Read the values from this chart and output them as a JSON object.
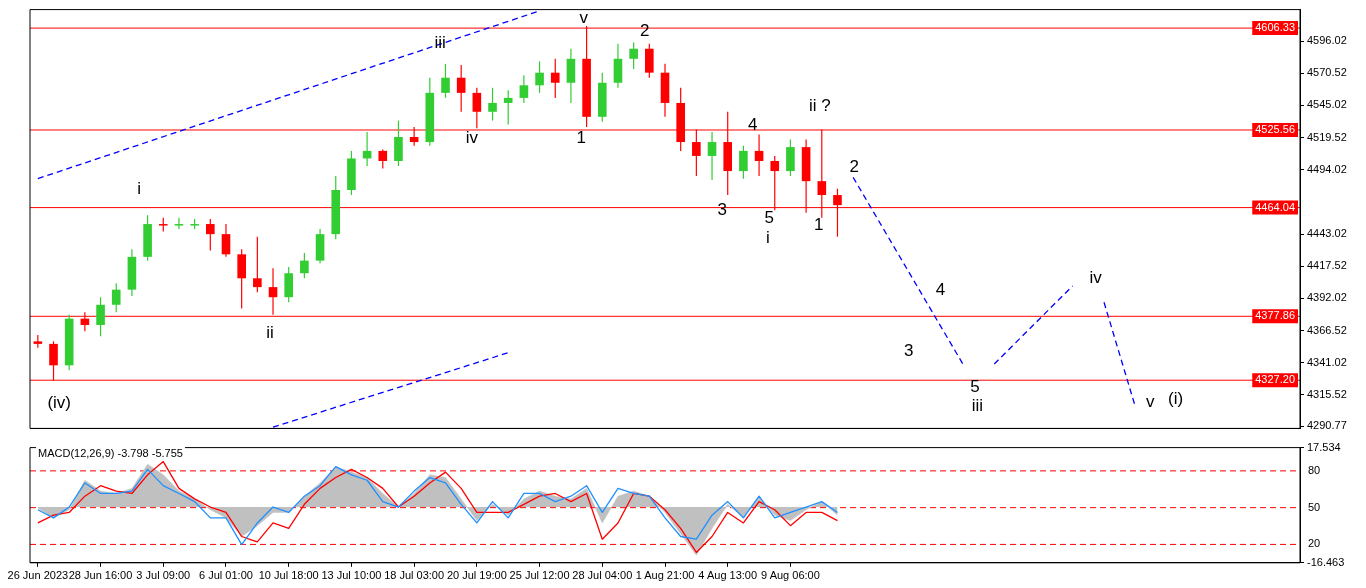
{
  "chart_data": [
    {
      "type": "candlestick",
      "tick_labels": "y",
      "marker": "none",
      "categories": [
        null,
        null,
        null,
        null,
        null,
        null,
        null,
        null,
        null,
        null,
        null,
        null,
        null,
        null,
        null,
        null,
        null,
        null,
        null,
        null,
        null,
        null,
        null,
        null,
        null,
        null,
        null,
        null,
        null,
        null,
        null,
        null,
        null,
        null,
        null,
        null,
        null,
        null,
        null,
        null,
        null,
        null,
        null,
        null,
        null,
        null,
        null,
        null,
        null,
        null,
        null,
        null,
        null,
        null,
        null,
        null,
        null,
        null,
        null,
        null,
        null,
        null,
        null,
        null,
        null,
        null,
        null,
        null,
        null,
        null,
        null,
        null,
        null,
        null,
        null,
        null,
        null,
        null,
        null,
        null,
        null
      ],
      "ohlc": [
        [
          4358,
          4363,
          4353,
          4356
        ],
        [
          4356,
          4358,
          4327,
          4339
        ],
        [
          4339,
          4379,
          4335,
          4376
        ],
        [
          4376,
          4381,
          4366,
          4371
        ],
        [
          4371,
          4393,
          4362,
          4387
        ],
        [
          4387,
          4404,
          4381,
          4399
        ],
        [
          4399,
          4431,
          4394,
          4425
        ],
        [
          4425,
          4458,
          4422,
          4451
        ],
        [
          4451,
          4456,
          4445,
          4450
        ],
        [
          4450,
          4456,
          4447,
          4451
        ],
        [
          4451,
          4455,
          4447,
          4451
        ],
        [
          4451,
          4455,
          4430,
          4443
        ],
        [
          4443,
          4451,
          4425,
          4427
        ],
        [
          4427,
          4431,
          4384,
          4408
        ],
        [
          4408,
          4441,
          4397,
          4401
        ],
        [
          4401,
          4416,
          4379,
          4393
        ],
        [
          4393,
          4417,
          4389,
          4412
        ],
        [
          4412,
          4428,
          4408,
          4422
        ],
        [
          4422,
          4447,
          4420,
          4443
        ],
        [
          4443,
          4489,
          4439,
          4478
        ],
        [
          4478,
          4509,
          4474,
          4503
        ],
        [
          4503,
          4524,
          4497,
          4509
        ],
        [
          4509,
          4510,
          4495,
          4501
        ],
        [
          4501,
          4533,
          4497,
          4520
        ],
        [
          4520,
          4528,
          4513,
          4516
        ],
        [
          4516,
          4567,
          4513,
          4555
        ],
        [
          4555,
          4578,
          4551,
          4567
        ],
        [
          4567,
          4577,
          4540,
          4555
        ],
        [
          4555,
          4559,
          4527,
          4540
        ],
        [
          4540,
          4559,
          4533,
          4547
        ],
        [
          4547,
          4557,
          4530,
          4551
        ],
        [
          4551,
          4569,
          4547,
          4561
        ],
        [
          4561,
          4580,
          4555,
          4571
        ],
        [
          4571,
          4582,
          4551,
          4563
        ],
        [
          4563,
          4590,
          4547,
          4582
        ],
        [
          4582,
          4608,
          4528,
          4536
        ],
        [
          4536,
          4571,
          4532,
          4563
        ],
        [
          4563,
          4594,
          4559,
          4582
        ],
        [
          4582,
          4595,
          4574,
          4590
        ],
        [
          4590,
          4594,
          4567,
          4571
        ],
        [
          4571,
          4578,
          4536,
          4547
        ],
        [
          4547,
          4559,
          4509,
          4516
        ],
        [
          4516,
          4526,
          4489,
          4505
        ],
        [
          4505,
          4524,
          4486,
          4516
        ],
        [
          4516,
          4540,
          4474,
          4493
        ],
        [
          4493,
          4513,
          4487,
          4509
        ],
        [
          4509,
          4522,
          4489,
          4501
        ],
        [
          4501,
          4505,
          4462,
          4493
        ],
        [
          4493,
          4518,
          4489,
          4512
        ],
        [
          4512,
          4518,
          4460,
          4485
        ],
        [
          4485,
          4526,
          4456,
          4474
        ],
        [
          4474,
          4479,
          4441,
          4466
        ],
        null,
        null,
        null,
        null,
        null,
        null,
        null,
        null,
        null,
        null,
        null,
        null,
        null,
        null,
        null,
        null,
        null,
        null,
        null,
        null,
        null,
        null,
        null,
        null,
        null,
        null,
        null,
        null,
        null
      ],
      "colors": [
        "#ff0000",
        "#ff0000",
        "#32cd32",
        "#ff0000",
        "#32cd32",
        "#32cd32",
        "#32cd32",
        "#32cd32",
        "#ff0000",
        "#32cd32",
        "#32cd32",
        "#ff0000",
        "#ff0000",
        "#ff0000",
        "#ff0000",
        "#ff0000",
        "#32cd32",
        "#32cd32",
        "#32cd32",
        "#32cd32",
        "#32cd32",
        "#32cd32",
        "#ff0000",
        "#32cd32",
        "#ff0000",
        "#32cd32",
        "#32cd32",
        "#ff0000",
        "#ff0000",
        "#32cd32",
        "#32cd32",
        "#32cd32",
        "#32cd32",
        "#ff0000",
        "#32cd32",
        "#ff0000",
        "#32cd32",
        "#32cd32",
        "#32cd32",
        "#ff0000",
        "#ff0000",
        "#ff0000",
        "#ff0000",
        "#32cd32",
        "#ff0000",
        "#32cd32",
        "#ff0000",
        "#ff0000",
        "#32cd32",
        "#ff0000",
        "#ff0000",
        "#ff0000",
        null,
        null,
        null,
        null,
        null,
        null,
        null,
        null,
        null,
        null,
        null,
        null,
        null,
        null,
        null,
        null,
        null,
        null,
        null,
        null,
        null,
        null,
        null,
        null,
        null,
        null,
        null,
        null,
        null
      ],
      "series": [
        {
          "type": "line",
          "color": "#0000ff",
          "line_style": "dashed",
          "values": [
            null,
            null,
            null,
            null,
            null,
            null,
            null,
            null,
            null,
            null,
            null,
            null,
            null,
            null,
            null,
            null,
            null,
            null,
            null,
            null,
            null,
            null,
            null,
            null,
            null,
            null,
            null,
            null,
            null,
            null,
            null,
            null,
            null,
            null,
            null,
            null,
            null,
            null,
            null,
            null,
            null,
            null,
            null,
            null,
            null,
            null,
            null,
            null,
            null,
            null,
            null,
            null,
            4488,
            null,
            null,
            null,
            null,
            null,
            null,
            4340,
            null,
            null,
            null,
            null,
            null,
            null,
            null,
            null,
            null,
            null,
            null,
            null,
            null,
            null,
            null,
            null,
            null,
            null,
            null,
            null,
            null
          ]
        },
        {
          "type": "line",
          "color": "#0000ff",
          "line_style": "dashed",
          "values": [
            null,
            null,
            null,
            null,
            null,
            null,
            null,
            null,
            null,
            null,
            null,
            null,
            null,
            null,
            null,
            null,
            null,
            null,
            null,
            null,
            null,
            null,
            null,
            null,
            null,
            null,
            null,
            null,
            null,
            null,
            null,
            null,
            null,
            null,
            null,
            null,
            null,
            null,
            null,
            null,
            null,
            null,
            null,
            null,
            null,
            null,
            null,
            null,
            null,
            null,
            null,
            null,
            null,
            null,
            null,
            null,
            null,
            null,
            null,
            null,
            null,
            4340,
            null,
            null,
            null,
            null,
            4402,
            null,
            null,
            null,
            null,
            null,
            null,
            null,
            null,
            null,
            null,
            null,
            null,
            null,
            null
          ]
        },
        {
          "type": "line",
          "color": "#0000ff",
          "line_style": "dashed",
          "values": [
            null,
            null,
            null,
            null,
            null,
            null,
            null,
            null,
            null,
            null,
            null,
            null,
            null,
            null,
            null,
            null,
            null,
            null,
            null,
            null,
            null,
            null,
            null,
            null,
            null,
            null,
            null,
            null,
            null,
            null,
            null,
            null,
            null,
            null,
            null,
            null,
            null,
            null,
            null,
            null,
            null,
            null,
            null,
            null,
            null,
            null,
            null,
            null,
            null,
            null,
            null,
            null,
            null,
            null,
            null,
            null,
            null,
            null,
            null,
            null,
            null,
            null,
            null,
            null,
            null,
            null,
            null,
            null,
            4389,
            null,
            4306,
            null,
            null,
            null,
            null,
            null,
            null,
            null,
            null,
            null,
            null
          ]
        },
        {
          "type": "line",
          "color": "#0000ff",
          "line_style": "dashed",
          "values": [
            4487,
            null,
            null,
            null,
            null,
            null,
            null,
            null,
            null,
            null,
            null,
            null,
            null,
            null,
            null,
            null,
            null,
            null,
            null,
            null,
            null,
            null,
            null,
            null,
            null,
            null,
            null,
            null,
            null,
            null,
            null,
            null,
            4620,
            null,
            null,
            null,
            null,
            null,
            null,
            null,
            null,
            null,
            null,
            null,
            null,
            null,
            null,
            null,
            null,
            null,
            null,
            null,
            null,
            null,
            null,
            null,
            null,
            null,
            null,
            null,
            null,
            null,
            null,
            null,
            null,
            null,
            null,
            null,
            null,
            null,
            null,
            null,
            null,
            null,
            null,
            null,
            null,
            null,
            null,
            null,
            null
          ]
        },
        {
          "type": "line",
          "color": "#0000ff",
          "line_style": "dashed",
          "values": [
            null,
            null,
            null,
            null,
            null,
            null,
            null,
            null,
            null,
            null,
            null,
            null,
            null,
            null,
            null,
            4290,
            null,
            null,
            null,
            null,
            null,
            null,
            null,
            null,
            null,
            null,
            null,
            null,
            null,
            null,
            4349,
            null,
            null,
            null,
            null,
            null,
            null,
            null,
            null,
            null,
            null,
            null,
            null,
            null,
            null,
            null,
            null,
            null,
            null,
            null,
            null,
            null,
            null,
            null,
            null,
            null,
            null,
            null,
            null,
            null,
            null,
            null,
            null,
            null,
            null,
            null,
            null,
            null,
            null,
            null,
            null,
            null,
            null,
            null,
            null,
            null,
            null,
            null,
            null,
            null,
            null
          ]
        }
      ],
      "ylim": [
        4289,
        4621
      ],
      "yticks": [
        4596.02,
        4570.52,
        4545.02,
        4519.52,
        4494.02,
        4443.02,
        4417.52,
        4392.02,
        4366.52,
        4341.02,
        4315.52,
        4290.77
      ],
      "ref_lines": [
        {
          "axis": "y",
          "value": 4606.33,
          "label": "4606.33",
          "color": "#ff0000",
          "line_style": "solid"
        },
        {
          "axis": "y",
          "value": 4525.56,
          "label": "4525.56",
          "color": "#ff0000",
          "line_style": "solid"
        },
        {
          "axis": "y",
          "value": 4464.04,
          "label": "4464.04",
          "color": "#ff0000",
          "line_style": "solid"
        },
        {
          "axis": "y",
          "value": 4377.86,
          "label": "4377.86",
          "color": "#ff0000",
          "line_style": "solid"
        },
        {
          "axis": "y",
          "value": 4327.2,
          "label": "4327.20",
          "color": "#ff0000",
          "line_style": "solid"
        }
      ],
      "annotations": [
        "(iv)",
        "i",
        "ii",
        "iii",
        "iv",
        "v",
        "1",
        "2",
        "3",
        "4",
        "5",
        "i",
        "ii ?",
        "1",
        "2",
        "3",
        "4",
        "5",
        "iii",
        "iv",
        "v",
        "(i)"
      ]
    },
    {
      "type": "line",
      "title": "MACD(12,26,9) -3.798 -5.755",
      "marker": "none",
      "categories": [
        "26 Jun 2023",
        null,
        null,
        null,
        "28 Jun 16:00",
        null,
        null,
        null,
        "3 Jul 09:00",
        null,
        null,
        null,
        "6 Jul 01:00",
        null,
        null,
        null,
        "10 Jul 18:00",
        null,
        null,
        null,
        "13 Jul 10:00",
        null,
        null,
        null,
        "18 Jul 03:00",
        null,
        null,
        null,
        "20 Jul 19:00",
        null,
        null,
        null,
        "25 Jul 12:00",
        null,
        null,
        null,
        "28 Jul 04:00",
        null,
        null,
        null,
        "1 Aug 21:00",
        null,
        null,
        null,
        "4 Aug 13:00",
        null,
        null,
        null,
        "9 Aug 06:00",
        null,
        null,
        null,
        null,
        null,
        null,
        null,
        null,
        null,
        null,
        null,
        null,
        null,
        null,
        null,
        null,
        null,
        null,
        null,
        null,
        null,
        null,
        null,
        null,
        null,
        null,
        null,
        null,
        null,
        null,
        null,
        null
      ],
      "series": [
        {
          "type": "area",
          "color": "#c0c0c0",
          "values": [
            -0.3,
            -3.2,
            -0.8,
            7.9,
            4.7,
            4.0,
            5.5,
            12.6,
            9.5,
            4.7,
            2.4,
            -0.8,
            -3.2,
            -8.7,
            -5.5,
            -1.6,
            -1.6,
            3.2,
            7.1,
            11.9,
            10.3,
            8.7,
            4.0,
            0.0,
            4.0,
            9.5,
            8.7,
            2.4,
            -4.0,
            0.8,
            -2.4,
            2.4,
            4.7,
            3.2,
            2.4,
            5.5,
            -4.7,
            3.2,
            4.7,
            3.2,
            -1.6,
            -7.9,
            -14.2,
            -6.3,
            0.8,
            -3.2,
            3.2,
            -2.4,
            -4.0,
            -0.8,
            1.6,
            -2.4,
            null,
            null,
            null,
            null,
            null,
            null,
            null,
            null,
            null,
            null,
            null,
            null,
            null,
            null,
            null,
            null,
            null,
            null,
            null,
            null,
            null,
            null,
            null,
            null,
            null,
            null,
            null,
            null,
            null
          ]
        },
        {
          "type": "line",
          "color": "#1e90ff",
          "values": [
            -0.8,
            -3.2,
            0.0,
            7.1,
            4.0,
            4.0,
            4.7,
            11.1,
            6.3,
            4.0,
            1.6,
            -3.2,
            -3.2,
            -11.1,
            -4.7,
            0.0,
            -1.6,
            3.2,
            6.3,
            11.9,
            9.5,
            7.9,
            1.6,
            0.0,
            4.7,
            8.7,
            7.1,
            0.8,
            -4.7,
            1.6,
            -3.2,
            4.0,
            4.0,
            1.6,
            3.2,
            6.3,
            -1.6,
            5.5,
            4.0,
            3.2,
            -3.2,
            -8.7,
            -9.5,
            -2.4,
            1.6,
            -3.2,
            3.2,
            -3.2,
            -1.6,
            0.0,
            1.6,
            -1.6,
            null,
            null,
            null,
            null,
            null,
            null,
            null,
            null,
            null,
            null,
            null,
            null,
            null,
            null,
            null,
            null,
            null,
            null,
            null,
            null,
            null,
            null,
            null,
            null,
            null,
            null,
            null,
            null,
            null
          ]
        },
        {
          "type": "line",
          "color": "#ff0000",
          "values": [
            -4.7,
            -2.4,
            -1.6,
            3.2,
            6.3,
            4.7,
            4.0,
            9.5,
            13.4,
            5.5,
            2.4,
            0.0,
            -1.6,
            -8.7,
            -10.3,
            -4.7,
            -6.3,
            0.8,
            5.5,
            8.7,
            11.1,
            8.7,
            5.5,
            0.0,
            3.2,
            7.1,
            10.3,
            5.5,
            -1.6,
            -1.6,
            -1.6,
            0.8,
            3.2,
            4.0,
            1.6,
            4.0,
            -9.5,
            -4.7,
            4.0,
            3.2,
            -0.8,
            -6.3,
            -13.4,
            -8.7,
            -1.6,
            -4.7,
            1.6,
            -0.8,
            -5.5,
            -1.6,
            -1.6,
            -4.0,
            null,
            null,
            null,
            null,
            null,
            null,
            null,
            null,
            null,
            null,
            null,
            null,
            null,
            null,
            null,
            null,
            null,
            null,
            null,
            null,
            null,
            null,
            null,
            null,
            null,
            null,
            null,
            null,
            null
          ]
        }
      ],
      "ylim": [
        -16.463,
        17.534
      ],
      "yticks": [
        17.534,
        -16.463
      ],
      "y2lim": [
        5,
        99
      ],
      "ref_lines": [
        {
          "axis": "y2",
          "value": 80,
          "label": "80",
          "color": "#ff0000",
          "line_style": "dashed"
        },
        {
          "axis": "y2",
          "value": 50,
          "label": "50",
          "color": "#ff0000",
          "line_style": "dashed"
        },
        {
          "axis": "y2",
          "value": 20,
          "label": "20",
          "color": "#ff0000",
          "line_style": "dashed"
        }
      ]
    }
  ]
}
